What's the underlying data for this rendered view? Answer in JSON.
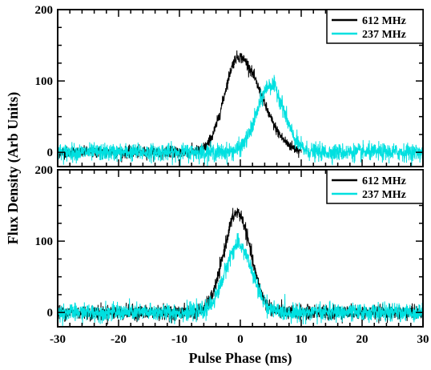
{
  "chart_data": [
    {
      "type": "line",
      "panel": "top",
      "xlim": [
        -30,
        30
      ],
      "ylim": [
        -20,
        200
      ],
      "xticks": [
        -30,
        -20,
        -10,
        0,
        10,
        20,
        30
      ],
      "yticks": [
        0,
        100,
        200
      ],
      "ytick_labels": [
        "0",
        "100",
        "200"
      ],
      "grid": false,
      "legend_position": "top-right",
      "series": [
        {
          "name": "612 MHz",
          "color": "#000000",
          "peak_x": -0.3,
          "peak_y": 134,
          "width_ms": 2.3,
          "shape": "skewed-right",
          "tail_right": 1.6,
          "noise_x_range": [
            -30,
            10
          ],
          "noise_sigma": 4
        },
        {
          "name": "237 MHz",
          "color": "#00e0e0",
          "peak_x": 5,
          "peak_y": 95,
          "width_ms": 2.2,
          "shape": "gaussian",
          "noise_x_range": [
            -30,
            30
          ],
          "noise_sigma": 6
        }
      ]
    },
    {
      "type": "line",
      "panel": "bottom",
      "xlim": [
        -30,
        30
      ],
      "ylim": [
        -20,
        200
      ],
      "xticks": [
        -30,
        -20,
        -10,
        0,
        10,
        20,
        30
      ],
      "xtick_labels": [
        "-30",
        "-20",
        "-10",
        "0",
        "10",
        "20",
        "30"
      ],
      "yticks": [
        0,
        100,
        200
      ],
      "ytick_labels": [
        "0",
        "100",
        "200"
      ],
      "grid": false,
      "legend_position": "top-right",
      "series": [
        {
          "name": "612 MHz",
          "color": "#000000",
          "peak_x": -0.5,
          "peak_y": 140,
          "width_ms": 2.2,
          "shape": "gaussian",
          "noise_x_range": [
            -30,
            30
          ],
          "noise_sigma": 5
        },
        {
          "name": "237 MHz",
          "color": "#00e0e0",
          "peak_x": -0.3,
          "peak_y": 95,
          "width_ms": 2.2,
          "shape": "gaussian",
          "noise_x_range": [
            -30,
            30
          ],
          "noise_sigma": 6
        }
      ]
    }
  ],
  "xlabel": "Pulse  Phase  (ms)",
  "ylabel": "Flux  Density  (Arb  Units)"
}
